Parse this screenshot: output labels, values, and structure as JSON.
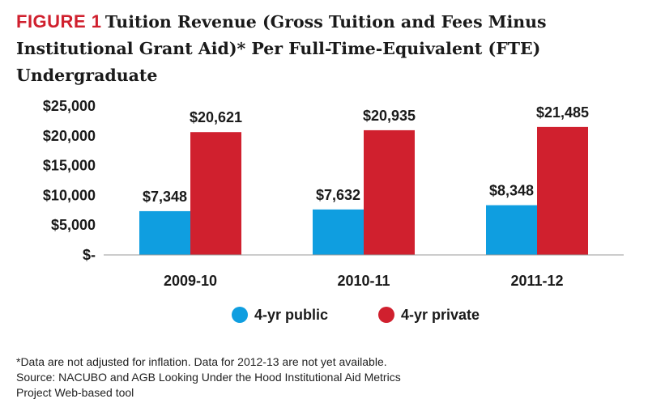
{
  "figure": {
    "label": "FIGURE 1",
    "title": "Tuition Revenue (Gross Tuition and Fees Minus Institutional Grant Aid)* Per Full-Time-Equivalent (FTE) Undergraduate"
  },
  "chart_data": {
    "type": "bar",
    "categories": [
      "2009-10",
      "2010-11",
      "2011-12"
    ],
    "series": [
      {
        "name": "4-yr public",
        "color": "#0f9ee0",
        "values": [
          7348,
          7632,
          8348
        ],
        "labels": [
          "$7,348",
          "$7,632",
          "$8,348"
        ]
      },
      {
        "name": "4-yr private",
        "color": "#d0202e",
        "values": [
          20621,
          20935,
          21485
        ],
        "labels": [
          "$20,621",
          "$20,935",
          "$21,485"
        ]
      }
    ],
    "y_ticks": [
      0,
      5000,
      10000,
      15000,
      20000,
      25000
    ],
    "y_tick_labels": [
      "$-",
      "$5,000",
      "$10,000",
      "$15,000",
      "$20,000",
      "$25,000"
    ],
    "ylim": [
      0,
      25000
    ],
    "grid": false,
    "legend_position": "bottom"
  },
  "footnote": {
    "line1": "*Data are not adjusted for inflation. Data for 2012-13 are not yet available.",
    "line2": "Source: NACUBO and AGB Looking Under the Hood Institutional Aid Metrics",
    "line3": "Project Web-based tool"
  }
}
